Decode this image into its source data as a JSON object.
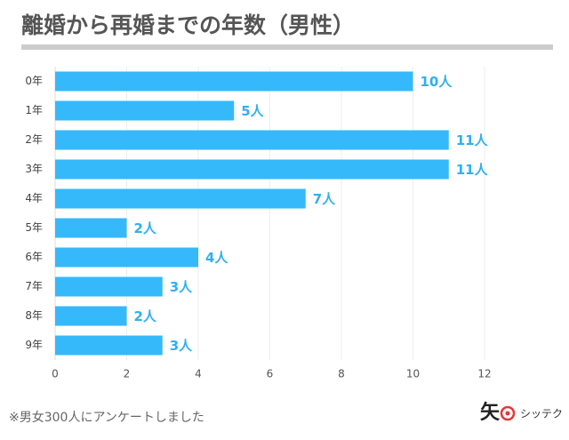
{
  "chart_data": {
    "type": "bar",
    "orientation": "horizontal",
    "title": "離婚から再婚までの年数（男性）",
    "categories": [
      "0年",
      "1年",
      "2年",
      "3年",
      "4年",
      "5年",
      "6年",
      "7年",
      "8年",
      "9年"
    ],
    "values": [
      10,
      5,
      11,
      11,
      7,
      2,
      4,
      3,
      2,
      3
    ],
    "value_labels": [
      "10人",
      "5人",
      "11人",
      "11人",
      "7人",
      "2人",
      "4人",
      "3人",
      "2人",
      "3人"
    ],
    "color": "#35b9fb",
    "xlim": [
      0,
      12
    ],
    "xticks": [
      0,
      2,
      4,
      6,
      8,
      10,
      12
    ],
    "grid": true,
    "footnote": "※男女300人にアンケートしました"
  },
  "logo": {
    "mark": "矢",
    "text": "シッテク"
  }
}
